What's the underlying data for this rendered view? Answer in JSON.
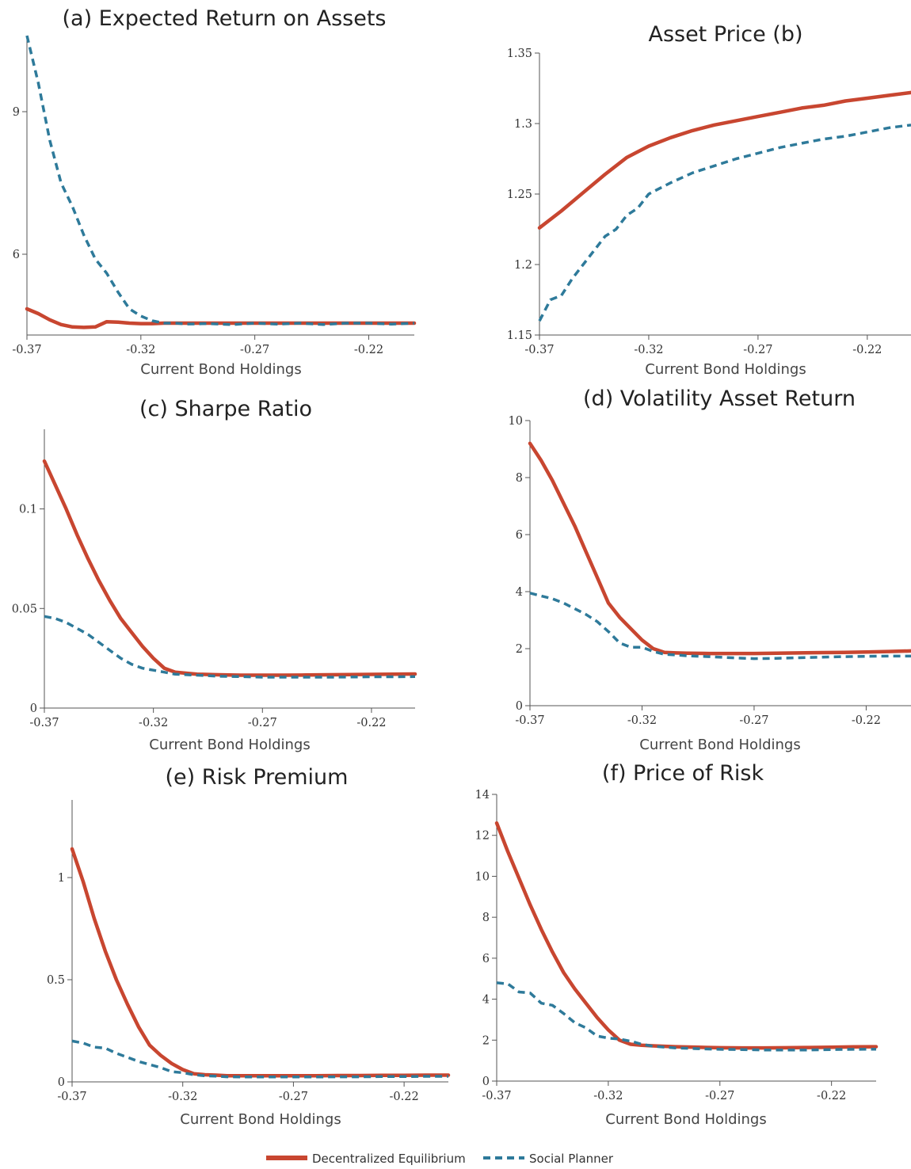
{
  "colors": {
    "decentralized": "#C84630",
    "planner": "#2E7A9A"
  },
  "legend": {
    "decentralized_label": "Decentralized Equilibrium",
    "planner_label": "Social Planner"
  },
  "chart_data": [
    {
      "id": "a",
      "type": "line",
      "title": "(a) Expected Return on Assets",
      "xlabel": "Current Bond Holdings",
      "ylabel": "",
      "xlim": [
        -0.37,
        -0.2
      ],
      "ylim": [
        4.3,
        10.6
      ],
      "xticks": [
        -0.37,
        -0.32,
        -0.27,
        -0.22
      ],
      "xtick_labels": [
        "-0.37",
        "-0.32",
        "-0.27",
        "-0.22"
      ],
      "yticks": [
        6,
        9
      ],
      "ytick_labels": [
        "6",
        "9"
      ],
      "series": [
        {
          "name": "Decentralized Equilibrium",
          "x": [
            -0.37,
            -0.365,
            -0.36,
            -0.355,
            -0.35,
            -0.345,
            -0.34,
            -0.335,
            -0.33,
            -0.325,
            -0.32,
            -0.315,
            -0.31,
            -0.3,
            -0.28,
            -0.26,
            -0.24,
            -0.22,
            -0.2
          ],
          "y": [
            4.85,
            4.75,
            4.62,
            4.52,
            4.47,
            4.46,
            4.47,
            4.58,
            4.57,
            4.55,
            4.54,
            4.54,
            4.55,
            4.55,
            4.55,
            4.55,
            4.55,
            4.55,
            4.55
          ]
        },
        {
          "name": "Social Planner",
          "x": [
            -0.37,
            -0.365,
            -0.36,
            -0.355,
            -0.35,
            -0.345,
            -0.34,
            -0.335,
            -0.33,
            -0.325,
            -0.32,
            -0.315,
            -0.31,
            -0.305,
            -0.3,
            -0.29,
            -0.28,
            -0.27,
            -0.26,
            -0.25,
            -0.24,
            -0.23,
            -0.22,
            -0.21,
            -0.2
          ],
          "y": [
            10.6,
            9.6,
            8.4,
            7.5,
            7.0,
            6.4,
            5.9,
            5.6,
            5.2,
            4.85,
            4.7,
            4.6,
            4.55,
            4.55,
            4.53,
            4.54,
            4.52,
            4.55,
            4.53,
            4.55,
            4.52,
            4.55,
            4.55,
            4.53,
            4.55
          ]
        }
      ]
    },
    {
      "id": "b",
      "type": "line",
      "title": "Asset Price (b)",
      "xlabel": "Current Bond Holdings",
      "ylabel": "",
      "xlim": [
        -0.37,
        -0.2
      ],
      "ylim": [
        1.15,
        1.35
      ],
      "xticks": [
        -0.37,
        -0.32,
        -0.27,
        -0.22
      ],
      "xtick_labels": [
        "-0.37",
        "-0.32",
        "-0.27",
        "-0.22"
      ],
      "yticks": [
        1.15,
        1.2,
        1.25,
        1.3,
        1.35
      ],
      "ytick_labels": [
        "1.15",
        "1.2",
        "1.25",
        "1.3",
        "1.35"
      ],
      "series": [
        {
          "name": "Decentralized Equilibrium",
          "x": [
            -0.37,
            -0.36,
            -0.35,
            -0.34,
            -0.33,
            -0.325,
            -0.32,
            -0.31,
            -0.3,
            -0.29,
            -0.28,
            -0.27,
            -0.26,
            -0.25,
            -0.24,
            -0.23,
            -0.22,
            -0.21,
            -0.2
          ],
          "y": [
            1.226,
            1.238,
            1.251,
            1.264,
            1.276,
            1.28,
            1.284,
            1.29,
            1.295,
            1.299,
            1.302,
            1.305,
            1.308,
            1.311,
            1.313,
            1.316,
            1.318,
            1.32,
            1.322
          ]
        },
        {
          "name": "Social Planner",
          "x": [
            -0.37,
            -0.365,
            -0.36,
            -0.355,
            -0.35,
            -0.345,
            -0.34,
            -0.335,
            -0.33,
            -0.325,
            -0.32,
            -0.31,
            -0.3,
            -0.29,
            -0.28,
            -0.27,
            -0.26,
            -0.25,
            -0.24,
            -0.23,
            -0.22,
            -0.21,
            -0.2
          ],
          "y": [
            1.16,
            1.175,
            1.178,
            1.19,
            1.2,
            1.21,
            1.22,
            1.225,
            1.235,
            1.24,
            1.25,
            1.258,
            1.265,
            1.27,
            1.275,
            1.279,
            1.283,
            1.286,
            1.289,
            1.291,
            1.294,
            1.297,
            1.299
          ]
        }
      ]
    },
    {
      "id": "c",
      "type": "line",
      "title": "(c) Sharpe Ratio",
      "xlabel": "Current Bond Holdings",
      "ylabel": "",
      "xlim": [
        -0.37,
        -0.2
      ],
      "ylim": [
        0,
        0.14
      ],
      "xticks": [
        -0.37,
        -0.32,
        -0.27,
        -0.22
      ],
      "xtick_labels": [
        "-0.37",
        "-0.32",
        "-0.27",
        "-0.22"
      ],
      "yticks": [
        0,
        0.05,
        0.1
      ],
      "ytick_labels": [
        "0",
        "0.05",
        "0.1"
      ],
      "series": [
        {
          "name": "Decentralized Equilibrium",
          "x": [
            -0.37,
            -0.365,
            -0.36,
            -0.355,
            -0.35,
            -0.345,
            -0.34,
            -0.335,
            -0.33,
            -0.325,
            -0.32,
            -0.315,
            -0.31,
            -0.305,
            -0.3,
            -0.29,
            -0.28,
            -0.27,
            -0.26,
            -0.25,
            -0.24,
            -0.23,
            -0.22,
            -0.21,
            -0.2
          ],
          "y": [
            0.124,
            0.112,
            0.1,
            0.087,
            0.075,
            0.064,
            0.054,
            0.045,
            0.038,
            0.031,
            0.025,
            0.02,
            0.018,
            0.0175,
            0.017,
            0.0167,
            0.0165,
            0.0165,
            0.0165,
            0.0166,
            0.0167,
            0.0168,
            0.0169,
            0.017,
            0.0171
          ]
        },
        {
          "name": "Social Planner",
          "x": [
            -0.37,
            -0.365,
            -0.36,
            -0.355,
            -0.35,
            -0.345,
            -0.34,
            -0.335,
            -0.33,
            -0.325,
            -0.32,
            -0.315,
            -0.31,
            -0.3,
            -0.29,
            -0.28,
            -0.27,
            -0.26,
            -0.25,
            -0.24,
            -0.23,
            -0.22,
            -0.21,
            -0.2
          ],
          "y": [
            0.046,
            0.045,
            0.043,
            0.04,
            0.037,
            0.033,
            0.029,
            0.025,
            0.022,
            0.02,
            0.019,
            0.018,
            0.017,
            0.0165,
            0.016,
            0.0158,
            0.0155,
            0.0155,
            0.0155,
            0.0155,
            0.0156,
            0.0157,
            0.0157,
            0.0158
          ]
        }
      ]
    },
    {
      "id": "d",
      "type": "line",
      "title": "(d) Volatility Asset Return",
      "xlabel": "Current Bond Holdings",
      "ylabel": "",
      "xlim": [
        -0.37,
        -0.2
      ],
      "ylim": [
        0,
        10
      ],
      "xticks": [
        -0.37,
        -0.32,
        -0.27,
        -0.22
      ],
      "xtick_labels": [
        "-0.37",
        "-0.32",
        "-0.27",
        "-0.22"
      ],
      "yticks": [
        0,
        2,
        4,
        6,
        8,
        10
      ],
      "ytick_labels": [
        "0",
        "2",
        "4",
        "6",
        "8",
        "10"
      ],
      "series": [
        {
          "name": "Decentralized Equilibrium",
          "x": [
            -0.37,
            -0.365,
            -0.36,
            -0.355,
            -0.35,
            -0.345,
            -0.34,
            -0.335,
            -0.33,
            -0.325,
            -0.32,
            -0.315,
            -0.31,
            -0.305,
            -0.3,
            -0.29,
            -0.28,
            -0.27,
            -0.26,
            -0.25,
            -0.24,
            -0.23,
            -0.22,
            -0.21,
            -0.2
          ],
          "y": [
            9.2,
            8.6,
            7.9,
            7.1,
            6.3,
            5.4,
            4.5,
            3.6,
            3.1,
            2.7,
            2.3,
            2.0,
            1.87,
            1.85,
            1.84,
            1.83,
            1.83,
            1.83,
            1.84,
            1.85,
            1.86,
            1.87,
            1.88,
            1.9,
            1.92
          ]
        },
        {
          "name": "Social Planner",
          "x": [
            -0.37,
            -0.365,
            -0.36,
            -0.355,
            -0.35,
            -0.345,
            -0.34,
            -0.335,
            -0.33,
            -0.325,
            -0.32,
            -0.315,
            -0.31,
            -0.305,
            -0.3,
            -0.29,
            -0.28,
            -0.27,
            -0.26,
            -0.25,
            -0.24,
            -0.23,
            -0.22,
            -0.21,
            -0.2
          ],
          "y": [
            3.95,
            3.85,
            3.75,
            3.6,
            3.4,
            3.2,
            2.95,
            2.6,
            2.2,
            2.05,
            2.05,
            1.9,
            1.8,
            1.78,
            1.75,
            1.72,
            1.68,
            1.65,
            1.66,
            1.68,
            1.7,
            1.72,
            1.73,
            1.74,
            1.74
          ]
        }
      ]
    },
    {
      "id": "e",
      "type": "line",
      "title": "(e) Risk Premium",
      "xlabel": "Current Bond Holdings",
      "ylabel": "",
      "xlim": [
        -0.37,
        -0.2
      ],
      "ylim": [
        0,
        1.38
      ],
      "xticks": [
        -0.37,
        -0.32,
        -0.27,
        -0.22
      ],
      "xtick_labels": [
        "-0.37",
        "-0.32",
        "-0.27",
        "-0.22"
      ],
      "yticks": [
        0,
        0.5,
        1
      ],
      "ytick_labels": [
        "0",
        "0.5",
        "1"
      ],
      "series": [
        {
          "name": "Decentralized Equilibrium",
          "x": [
            -0.37,
            -0.365,
            -0.36,
            -0.355,
            -0.35,
            -0.345,
            -0.34,
            -0.335,
            -0.33,
            -0.325,
            -0.32,
            -0.315,
            -0.31,
            -0.305,
            -0.3,
            -0.29,
            -0.28,
            -0.27,
            -0.26,
            -0.25,
            -0.24,
            -0.23,
            -0.22,
            -0.21,
            -0.2
          ],
          "y": [
            1.14,
            0.98,
            0.8,
            0.64,
            0.5,
            0.38,
            0.27,
            0.18,
            0.13,
            0.09,
            0.06,
            0.04,
            0.035,
            0.033,
            0.03,
            0.03,
            0.03,
            0.03,
            0.03,
            0.031,
            0.031,
            0.032,
            0.032,
            0.033,
            0.033
          ]
        },
        {
          "name": "Social Planner",
          "x": [
            -0.37,
            -0.365,
            -0.36,
            -0.355,
            -0.35,
            -0.345,
            -0.34,
            -0.335,
            -0.33,
            -0.325,
            -0.32,
            -0.315,
            -0.31,
            -0.305,
            -0.3,
            -0.29,
            -0.28,
            -0.27,
            -0.26,
            -0.25,
            -0.24,
            -0.23,
            -0.22,
            -0.21,
            -0.2
          ],
          "y": [
            0.2,
            0.19,
            0.17,
            0.165,
            0.14,
            0.12,
            0.1,
            0.085,
            0.07,
            0.05,
            0.045,
            0.035,
            0.03,
            0.028,
            0.025,
            0.024,
            0.024,
            0.024,
            0.024,
            0.025,
            0.025,
            0.026,
            0.026,
            0.027,
            0.027
          ]
        }
      ]
    },
    {
      "id": "f",
      "type": "line",
      "title": "(f) Price of Risk",
      "xlabel": "Current Bond Holdings",
      "ylabel": "",
      "xlim": [
        -0.37,
        -0.2
      ],
      "ylim": [
        0,
        14
      ],
      "xticks": [
        -0.37,
        -0.32,
        -0.27,
        -0.22
      ],
      "xtick_labels": [
        "-0.37",
        "-0.32",
        "-0.27",
        "-0.22"
      ],
      "yticks": [
        0,
        2,
        4,
        6,
        8,
        10,
        12,
        14
      ],
      "ytick_labels": [
        "0",
        "2",
        "4",
        "6",
        "8",
        "10",
        "12",
        "14"
      ],
      "series": [
        {
          "name": "Decentralized Equilibrium",
          "x": [
            -0.37,
            -0.365,
            -0.36,
            -0.355,
            -0.35,
            -0.345,
            -0.34,
            -0.335,
            -0.33,
            -0.325,
            -0.32,
            -0.315,
            -0.31,
            -0.305,
            -0.3,
            -0.29,
            -0.28,
            -0.27,
            -0.26,
            -0.25,
            -0.24,
            -0.23,
            -0.22,
            -0.21,
            -0.2
          ],
          "y": [
            12.6,
            11.2,
            9.9,
            8.6,
            7.4,
            6.3,
            5.3,
            4.5,
            3.8,
            3.1,
            2.5,
            2.0,
            1.8,
            1.75,
            1.72,
            1.68,
            1.65,
            1.63,
            1.62,
            1.62,
            1.63,
            1.64,
            1.65,
            1.67,
            1.68
          ]
        },
        {
          "name": "Social Planner",
          "x": [
            -0.37,
            -0.365,
            -0.36,
            -0.355,
            -0.35,
            -0.345,
            -0.34,
            -0.335,
            -0.33,
            -0.325,
            -0.32,
            -0.315,
            -0.31,
            -0.305,
            -0.3,
            -0.29,
            -0.28,
            -0.27,
            -0.26,
            -0.25,
            -0.24,
            -0.23,
            -0.22,
            -0.21,
            -0.2
          ],
          "y": [
            4.8,
            4.75,
            4.35,
            4.3,
            3.8,
            3.7,
            3.3,
            2.85,
            2.6,
            2.2,
            2.1,
            2.05,
            1.95,
            1.8,
            1.7,
            1.62,
            1.58,
            1.55,
            1.54,
            1.52,
            1.52,
            1.52,
            1.54,
            1.55,
            1.56
          ]
        }
      ]
    }
  ]
}
